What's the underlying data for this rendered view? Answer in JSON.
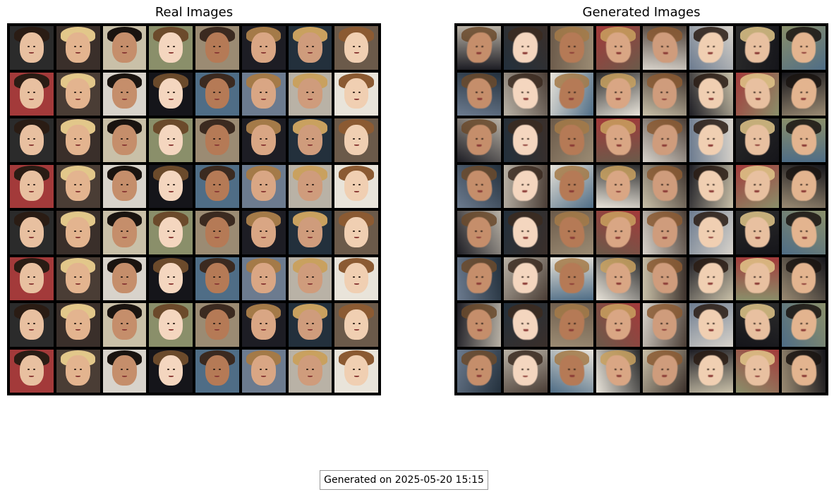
{
  "panels": {
    "real": {
      "title": "Real Images",
      "rows": 8,
      "cols": 8
    },
    "generated": {
      "title": "Generated Images",
      "rows": 8,
      "cols": 8
    }
  },
  "footer": {
    "text": "Generated on 2025-05-20 15:15"
  }
}
